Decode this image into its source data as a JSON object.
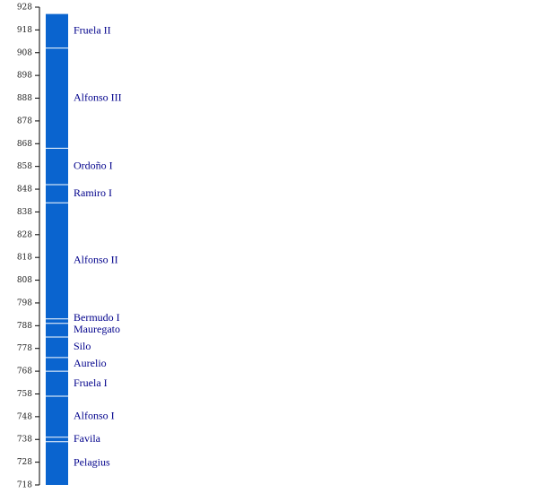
{
  "chart_data": {
    "type": "bar",
    "orientation": "vertical-timeline",
    "title": "",
    "xlabel": "",
    "ylabel": "",
    "ylim": [
      718,
      928
    ],
    "y_ticks": [
      718,
      728,
      738,
      748,
      758,
      768,
      778,
      788,
      798,
      808,
      818,
      828,
      838,
      848,
      858,
      868,
      878,
      888,
      898,
      908,
      918,
      928
    ],
    "grid": false,
    "bar_color": "#0a64cf",
    "label_color": "#00008b",
    "divider_color": "#ffffff",
    "segments": [
      {
        "label": "Pelagius",
        "start": 718,
        "end": 737
      },
      {
        "label": "Favila",
        "start": 737,
        "end": 739
      },
      {
        "label": "Alfonso I",
        "start": 739,
        "end": 757
      },
      {
        "label": "Fruela I",
        "start": 757,
        "end": 768
      },
      {
        "label": "Aurelio",
        "start": 768,
        "end": 774
      },
      {
        "label": "Silo",
        "start": 774,
        "end": 783
      },
      {
        "label": "Mauregato",
        "start": 783,
        "end": 789
      },
      {
        "label": "Bermudo I",
        "start": 789,
        "end": 791
      },
      {
        "label": "Alfonso II",
        "start": 791,
        "end": 842
      },
      {
        "label": "Ramiro I",
        "start": 842,
        "end": 850
      },
      {
        "label": "Ordoño I",
        "start": 850,
        "end": 866
      },
      {
        "label": "Alfonso III",
        "start": 866,
        "end": 910
      },
      {
        "label": "Fruela II",
        "start": 910,
        "end": 925
      }
    ]
  }
}
